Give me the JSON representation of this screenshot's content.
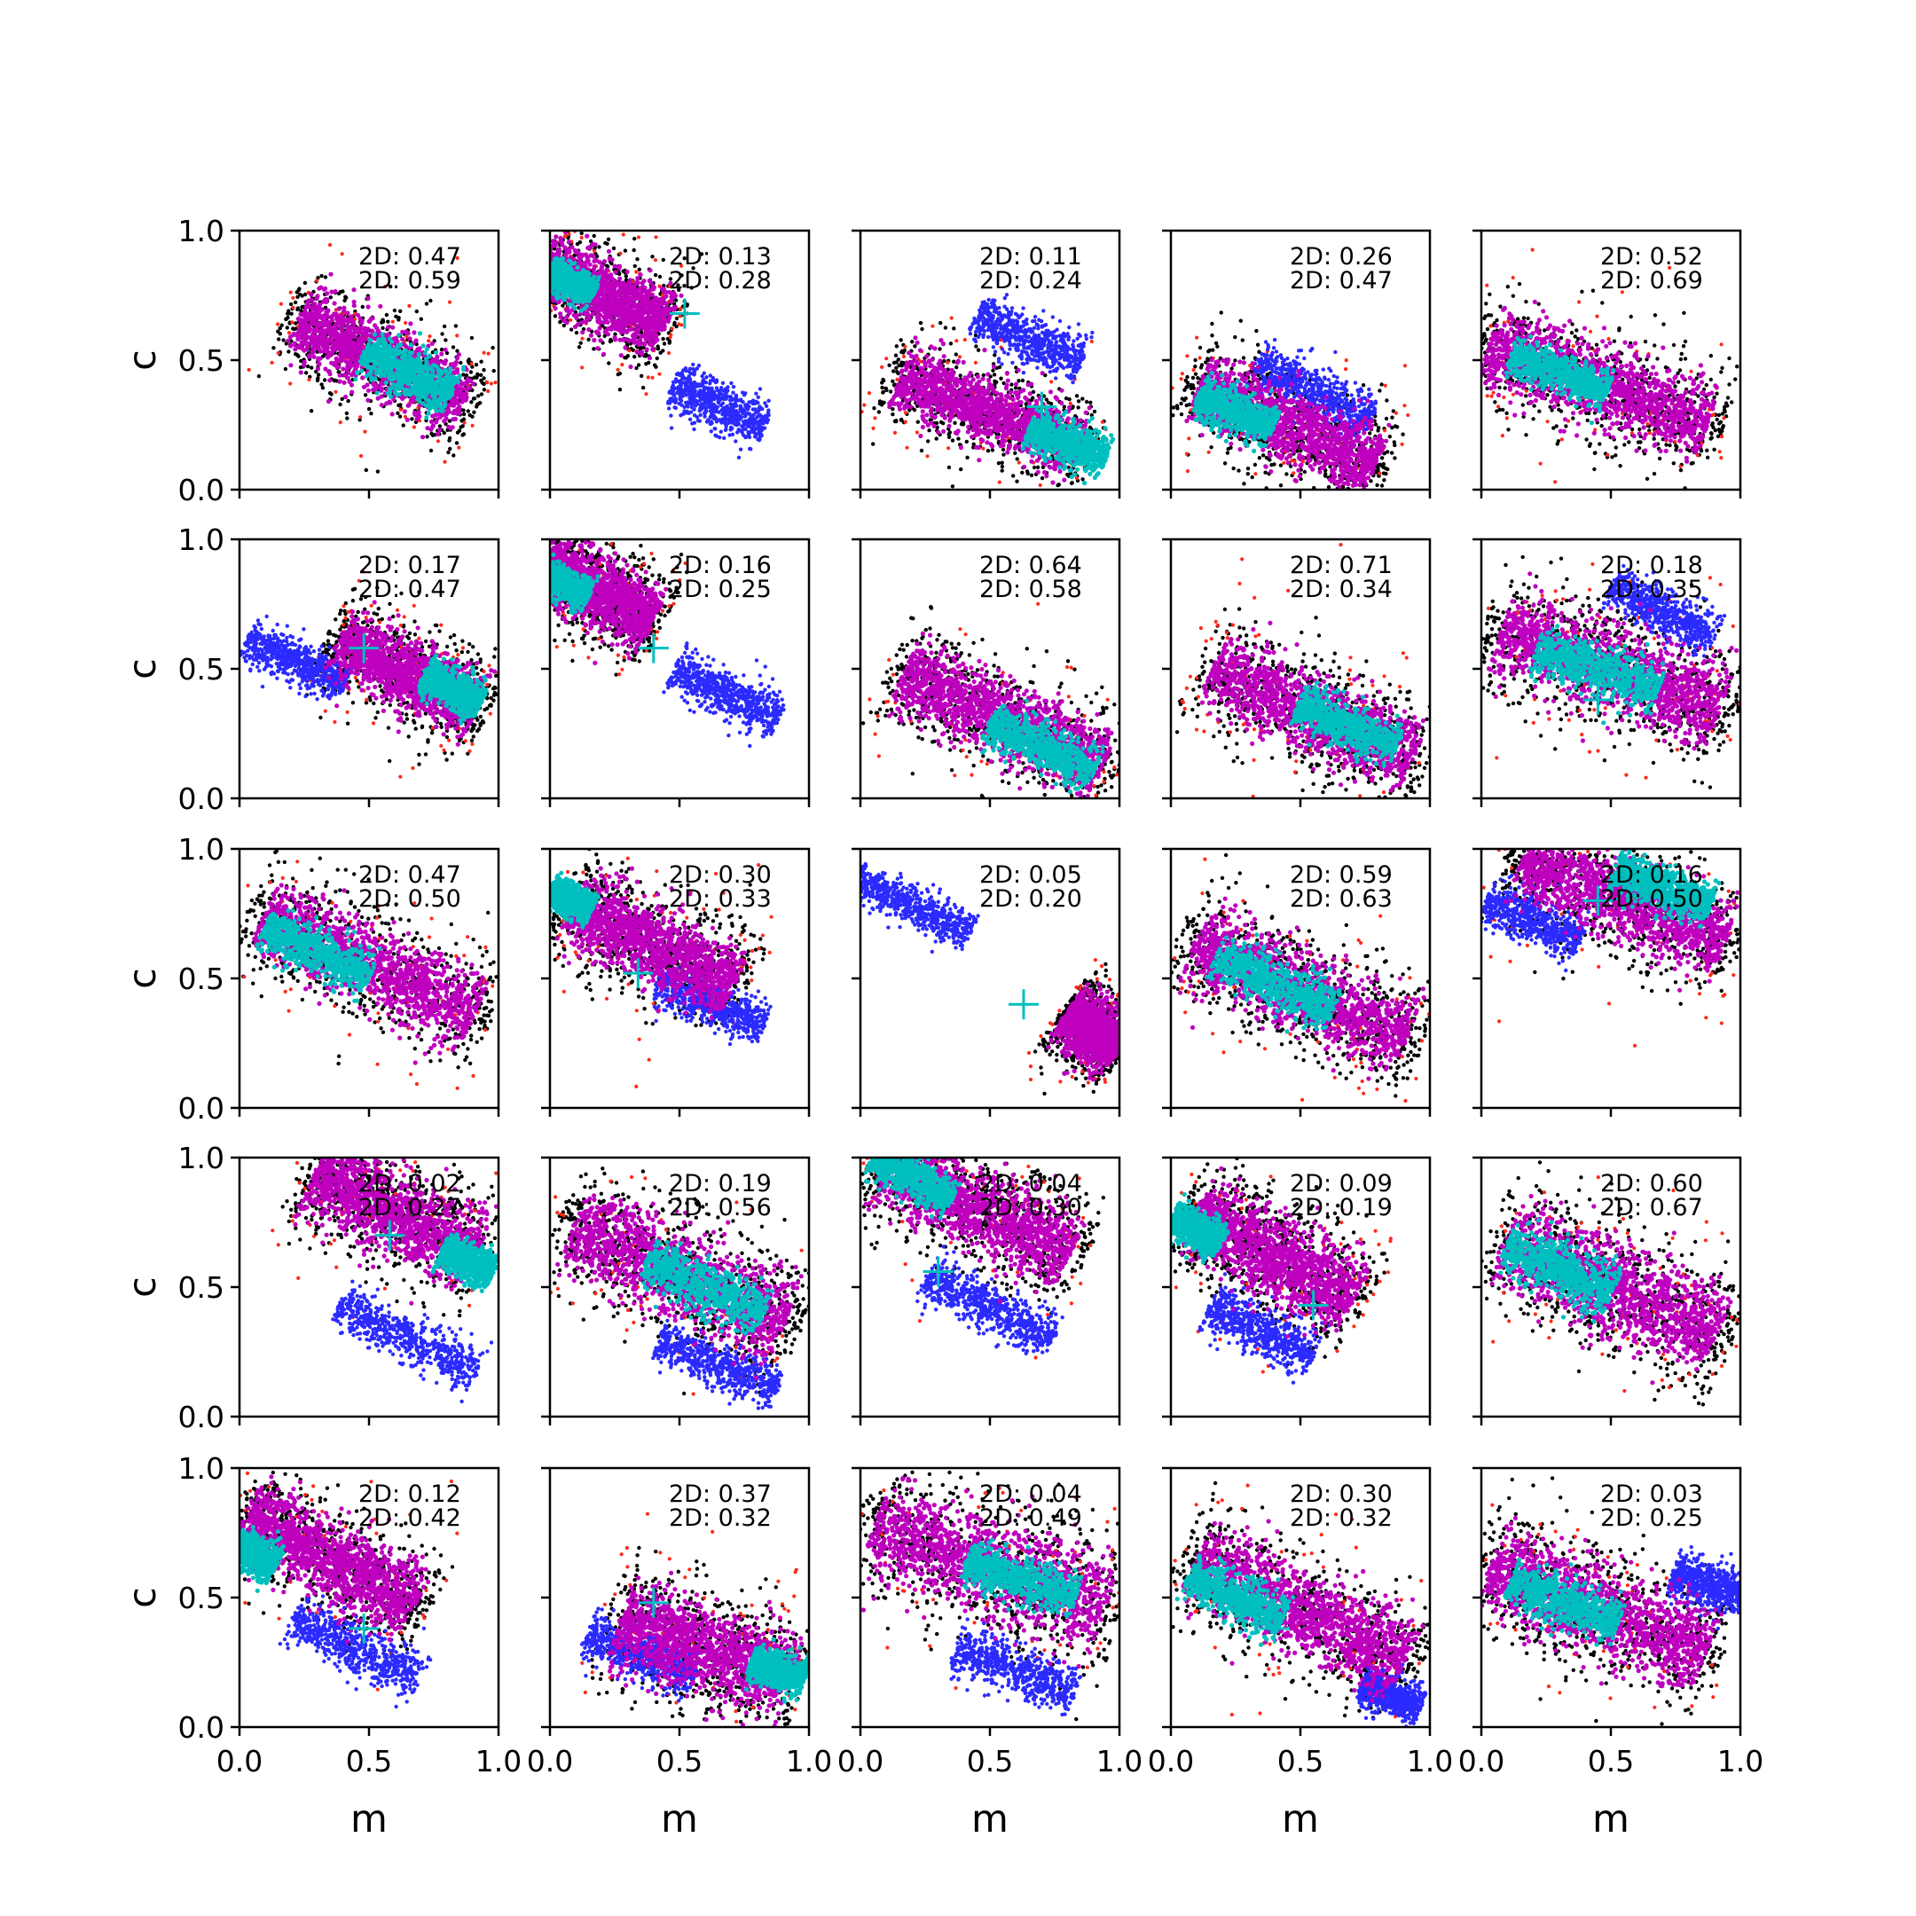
{
  "figure": {
    "xlabel": "m",
    "ylabel": "c",
    "xticks": [
      "0.0",
      "0.5",
      "1.0"
    ],
    "yticks": [
      "0.0",
      "0.5",
      "1.0"
    ]
  },
  "colors": {
    "black": "#000000",
    "red": "#ff2a1a",
    "blue": "#2b2bff",
    "magenta": "#bf00bf",
    "cyan": "#00bfbf",
    "marker": "#00bfbf"
  },
  "chart_data": {
    "type": "scatter",
    "grid_rows": 5,
    "grid_cols": 5,
    "xlim": [
      0,
      1
    ],
    "ylim": [
      0,
      1
    ],
    "grid": false,
    "xlabel": "m",
    "ylabel": "c",
    "series": [
      {
        "name": "",
        "color": "black"
      },
      {
        "name": "",
        "color": "red"
      },
      {
        "name": "",
        "color": "blue"
      },
      {
        "name": "",
        "color": "magenta"
      },
      {
        "name": "",
        "color": "cyan"
      }
    ],
    "panels": [
      {
        "line1": "2D: 0.47",
        "line2": "2D: 0.59",
        "main": {
          "cx": 0.55,
          "cy": 0.5,
          "slope": -0.5,
          "len": 0.72,
          "wid": 0.15
        },
        "core": {
          "cx": 0.65,
          "cy": 0.45,
          "len": 0.38,
          "wid": 0.11
        },
        "blue": null,
        "marker": null
      },
      {
        "line1": "2D: 0.13",
        "line2": "2D: 0.28",
        "main": {
          "cx": 0.2,
          "cy": 0.75,
          "slope": -0.5,
          "len": 0.55,
          "wid": 0.15
        },
        "core": {
          "cx": 0.08,
          "cy": 0.8,
          "len": 0.2,
          "wid": 0.07
        },
        "blue": {
          "cx": 0.65,
          "cy": 0.32,
          "slope": -0.5,
          "len": 0.4,
          "wid": 0.1
        },
        "marker": [
          0.52,
          0.68
        ]
      },
      {
        "line1": "2D: 0.11",
        "line2": "2D: 0.24",
        "main": {
          "cx": 0.5,
          "cy": 0.3,
          "slope": -0.4,
          "len": 0.75,
          "wid": 0.14
        },
        "core": {
          "cx": 0.8,
          "cy": 0.18,
          "len": 0.32,
          "wid": 0.1
        },
        "blue": {
          "cx": 0.65,
          "cy": 0.58,
          "slope": -0.45,
          "len": 0.45,
          "wid": 0.1
        },
        "marker": [
          0.7,
          0.32
        ]
      },
      {
        "line1": "2D: 0.26",
        "line2": "2D: 0.47",
        "main": {
          "cx": 0.45,
          "cy": 0.25,
          "slope": -0.45,
          "len": 0.75,
          "wid": 0.16
        },
        "core": {
          "cx": 0.25,
          "cy": 0.3,
          "len": 0.32,
          "wid": 0.1
        },
        "blue": {
          "cx": 0.55,
          "cy": 0.38,
          "slope": -0.5,
          "len": 0.5,
          "wid": 0.1
        },
        "marker": null
      },
      {
        "line1": "2D: 0.52",
        "line2": "2D: 0.69",
        "main": {
          "cx": 0.45,
          "cy": 0.4,
          "slope": -0.35,
          "len": 0.9,
          "wid": 0.18
        },
        "core": {
          "cx": 0.3,
          "cy": 0.45,
          "len": 0.4,
          "wid": 0.1
        },
        "blue": null,
        "marker": null
      },
      {
        "line1": "2D: 0.17",
        "line2": "2D: 0.47",
        "main": {
          "cx": 0.65,
          "cy": 0.48,
          "slope": -0.5,
          "len": 0.6,
          "wid": 0.15
        },
        "core": {
          "cx": 0.82,
          "cy": 0.42,
          "len": 0.25,
          "wid": 0.09
        },
        "blue": {
          "cx": 0.22,
          "cy": 0.53,
          "slope": -0.45,
          "len": 0.42,
          "wid": 0.09
        },
        "marker": [
          0.48,
          0.58
        ]
      },
      {
        "line1": "2D: 0.16",
        "line2": "2D: 0.25",
        "main": {
          "cx": 0.18,
          "cy": 0.8,
          "slope": -0.5,
          "len": 0.5,
          "wid": 0.15
        },
        "core": {
          "cx": 0.06,
          "cy": 0.82,
          "len": 0.2,
          "wid": 0.08
        },
        "blue": {
          "cx": 0.68,
          "cy": 0.4,
          "slope": -0.5,
          "len": 0.45,
          "wid": 0.1
        },
        "marker": [
          0.4,
          0.58
        ]
      },
      {
        "line1": "2D: 0.64",
        "line2": "2D: 0.58",
        "main": {
          "cx": 0.55,
          "cy": 0.3,
          "slope": -0.45,
          "len": 0.85,
          "wid": 0.17
        },
        "core": {
          "cx": 0.7,
          "cy": 0.2,
          "len": 0.45,
          "wid": 0.11
        },
        "blue": null,
        "marker": null
      },
      {
        "line1": "2D: 0.71",
        "line2": "2D: 0.34",
        "main": {
          "cx": 0.55,
          "cy": 0.33,
          "slope": -0.45,
          "len": 0.85,
          "wid": 0.17
        },
        "core": {
          "cx": 0.68,
          "cy": 0.28,
          "len": 0.42,
          "wid": 0.1
        },
        "blue": null,
        "marker": null
      },
      {
        "line1": "2D: 0.18",
        "line2": "2D: 0.35",
        "main": {
          "cx": 0.5,
          "cy": 0.5,
          "slope": -0.35,
          "len": 0.9,
          "wid": 0.2
        },
        "core": {
          "cx": 0.45,
          "cy": 0.5,
          "len": 0.5,
          "wid": 0.12
        },
        "blue": {
          "cx": 0.7,
          "cy": 0.72,
          "slope": -0.5,
          "len": 0.45,
          "wid": 0.09
        },
        "marker": [
          0.45,
          0.38
        ]
      },
      {
        "line1": "2D: 0.47",
        "line2": "2D: 0.50",
        "main": {
          "cx": 0.5,
          "cy": 0.55,
          "slope": -0.45,
          "len": 0.9,
          "wid": 0.17
        },
        "core": {
          "cx": 0.3,
          "cy": 0.6,
          "len": 0.45,
          "wid": 0.11
        },
        "blue": null,
        "marker": null
      },
      {
        "line1": "2D: 0.30",
        "line2": "2D: 0.33",
        "main": {
          "cx": 0.4,
          "cy": 0.63,
          "slope": -0.5,
          "len": 0.7,
          "wid": 0.17
        },
        "core": {
          "cx": 0.08,
          "cy": 0.8,
          "len": 0.18,
          "wid": 0.08
        },
        "blue": {
          "cx": 0.62,
          "cy": 0.4,
          "slope": -0.4,
          "len": 0.45,
          "wid": 0.09
        },
        "marker": [
          0.34,
          0.52
        ]
      },
      {
        "line1": "2D: 0.05",
        "line2": "2D: 0.20",
        "main": {
          "cx": 0.9,
          "cy": 0.3,
          "slope": -0.7,
          "len": 0.25,
          "wid": 0.14
        },
        "core": null,
        "blue": {
          "cx": 0.2,
          "cy": 0.78,
          "slope": -0.45,
          "len": 0.5,
          "wid": 0.08
        },
        "marker": [
          0.63,
          0.4
        ]
      },
      {
        "line1": "2D: 0.59",
        "line2": "2D: 0.63",
        "main": {
          "cx": 0.5,
          "cy": 0.45,
          "slope": -0.45,
          "len": 0.9,
          "wid": 0.18
        },
        "core": {
          "cx": 0.4,
          "cy": 0.48,
          "len": 0.5,
          "wid": 0.12
        },
        "blue": null,
        "marker": null
      },
      {
        "line1": "2D: 0.16",
        "line2": "2D: 0.50",
        "main": {
          "cx": 0.55,
          "cy": 0.8,
          "slope": -0.4,
          "len": 0.85,
          "wid": 0.18
        },
        "core": {
          "cx": 0.7,
          "cy": 0.85,
          "len": 0.4,
          "wid": 0.11
        },
        "blue": {
          "cx": 0.2,
          "cy": 0.72,
          "slope": -0.4,
          "len": 0.4,
          "wid": 0.1
        },
        "marker": [
          0.45,
          0.8
        ]
      },
      {
        "line1": "2D: 0.02",
        "line2": "2D: 0.27",
        "main": {
          "cx": 0.6,
          "cy": 0.78,
          "slope": -0.5,
          "len": 0.7,
          "wid": 0.18
        },
        "core": {
          "cx": 0.88,
          "cy": 0.6,
          "len": 0.22,
          "wid": 0.09
        },
        "blue": {
          "cx": 0.65,
          "cy": 0.3,
          "slope": -0.5,
          "len": 0.6,
          "wid": 0.1
        },
        "marker": [
          0.58,
          0.7
        ]
      },
      {
        "line1": "2D: 0.19",
        "line2": "2D: 0.56",
        "main": {
          "cx": 0.5,
          "cy": 0.55,
          "slope": -0.45,
          "len": 0.9,
          "wid": 0.2
        },
        "core": {
          "cx": 0.6,
          "cy": 0.5,
          "len": 0.5,
          "wid": 0.12
        },
        "blue": {
          "cx": 0.65,
          "cy": 0.2,
          "slope": -0.4,
          "len": 0.5,
          "wid": 0.09
        },
        "marker": [
          0.5,
          0.5
        ]
      },
      {
        "line1": "2D: 0.04",
        "line2": "2D: 0.30",
        "main": {
          "cx": 0.45,
          "cy": 0.8,
          "slope": -0.5,
          "len": 0.8,
          "wid": 0.18
        },
        "core": {
          "cx": 0.2,
          "cy": 0.92,
          "len": 0.35,
          "wid": 0.09
        },
        "blue": {
          "cx": 0.5,
          "cy": 0.42,
          "slope": -0.5,
          "len": 0.55,
          "wid": 0.1
        },
        "marker": [
          0.3,
          0.56
        ]
      },
      {
        "line1": "2D: 0.09",
        "line2": "2D: 0.19",
        "main": {
          "cx": 0.4,
          "cy": 0.62,
          "slope": -0.55,
          "len": 0.7,
          "wid": 0.18
        },
        "core": {
          "cx": 0.1,
          "cy": 0.72,
          "len": 0.22,
          "wid": 0.09
        },
        "blue": {
          "cx": 0.35,
          "cy": 0.33,
          "slope": -0.5,
          "len": 0.45,
          "wid": 0.1
        },
        "marker": [
          0.55,
          0.43
        ]
      },
      {
        "line1": "2D: 0.60",
        "line2": "2D: 0.67",
        "main": {
          "cx": 0.5,
          "cy": 0.5,
          "slope": -0.45,
          "len": 0.9,
          "wid": 0.2
        },
        "core": {
          "cx": 0.3,
          "cy": 0.57,
          "len": 0.45,
          "wid": 0.12
        },
        "blue": null,
        "marker": null
      },
      {
        "line1": "2D: 0.12",
        "line2": "2D: 0.42",
        "main": {
          "cx": 0.35,
          "cy": 0.65,
          "slope": -0.55,
          "len": 0.75,
          "wid": 0.17
        },
        "core": {
          "cx": 0.06,
          "cy": 0.66,
          "len": 0.18,
          "wid": 0.1
        },
        "blue": {
          "cx": 0.45,
          "cy": 0.3,
          "slope": -0.5,
          "len": 0.55,
          "wid": 0.1
        },
        "marker": [
          0.48,
          0.38
        ]
      },
      {
        "line1": "2D: 0.37",
        "line2": "2D: 0.32",
        "main": {
          "cx": 0.6,
          "cy": 0.3,
          "slope": -0.35,
          "len": 0.7,
          "wid": 0.2
        },
        "core": {
          "cx": 0.88,
          "cy": 0.22,
          "len": 0.22,
          "wid": 0.09
        },
        "blue": {
          "cx": 0.35,
          "cy": 0.28,
          "slope": -0.4,
          "len": 0.45,
          "wid": 0.1
        },
        "marker": [
          0.4,
          0.48
        ]
      },
      {
        "line1": "2D: 0.04",
        "line2": "2D: 0.49",
        "main": {
          "cx": 0.5,
          "cy": 0.62,
          "slope": -0.35,
          "len": 0.95,
          "wid": 0.22
        },
        "core": {
          "cx": 0.62,
          "cy": 0.57,
          "len": 0.45,
          "wid": 0.11
        },
        "blue": {
          "cx": 0.6,
          "cy": 0.22,
          "slope": -0.35,
          "len": 0.5,
          "wid": 0.1
        },
        "marker": null
      },
      {
        "line1": "2D: 0.30",
        "line2": "2D: 0.32",
        "main": {
          "cx": 0.5,
          "cy": 0.45,
          "slope": -0.5,
          "len": 0.9,
          "wid": 0.18
        },
        "core": {
          "cx": 0.25,
          "cy": 0.5,
          "len": 0.4,
          "wid": 0.11
        },
        "blue": {
          "cx": 0.85,
          "cy": 0.12,
          "slope": -0.4,
          "len": 0.25,
          "wid": 0.08
        },
        "marker": [
          0.4,
          0.38
        ]
      },
      {
        "line1": "2D: 0.03",
        "line2": "2D: 0.25",
        "main": {
          "cx": 0.45,
          "cy": 0.45,
          "slope": -0.4,
          "len": 0.9,
          "wid": 0.2
        },
        "core": {
          "cx": 0.32,
          "cy": 0.48,
          "len": 0.45,
          "wid": 0.11
        },
        "blue": {
          "cx": 0.88,
          "cy": 0.55,
          "slope": -0.3,
          "len": 0.3,
          "wid": 0.1
        },
        "marker": null
      }
    ]
  }
}
